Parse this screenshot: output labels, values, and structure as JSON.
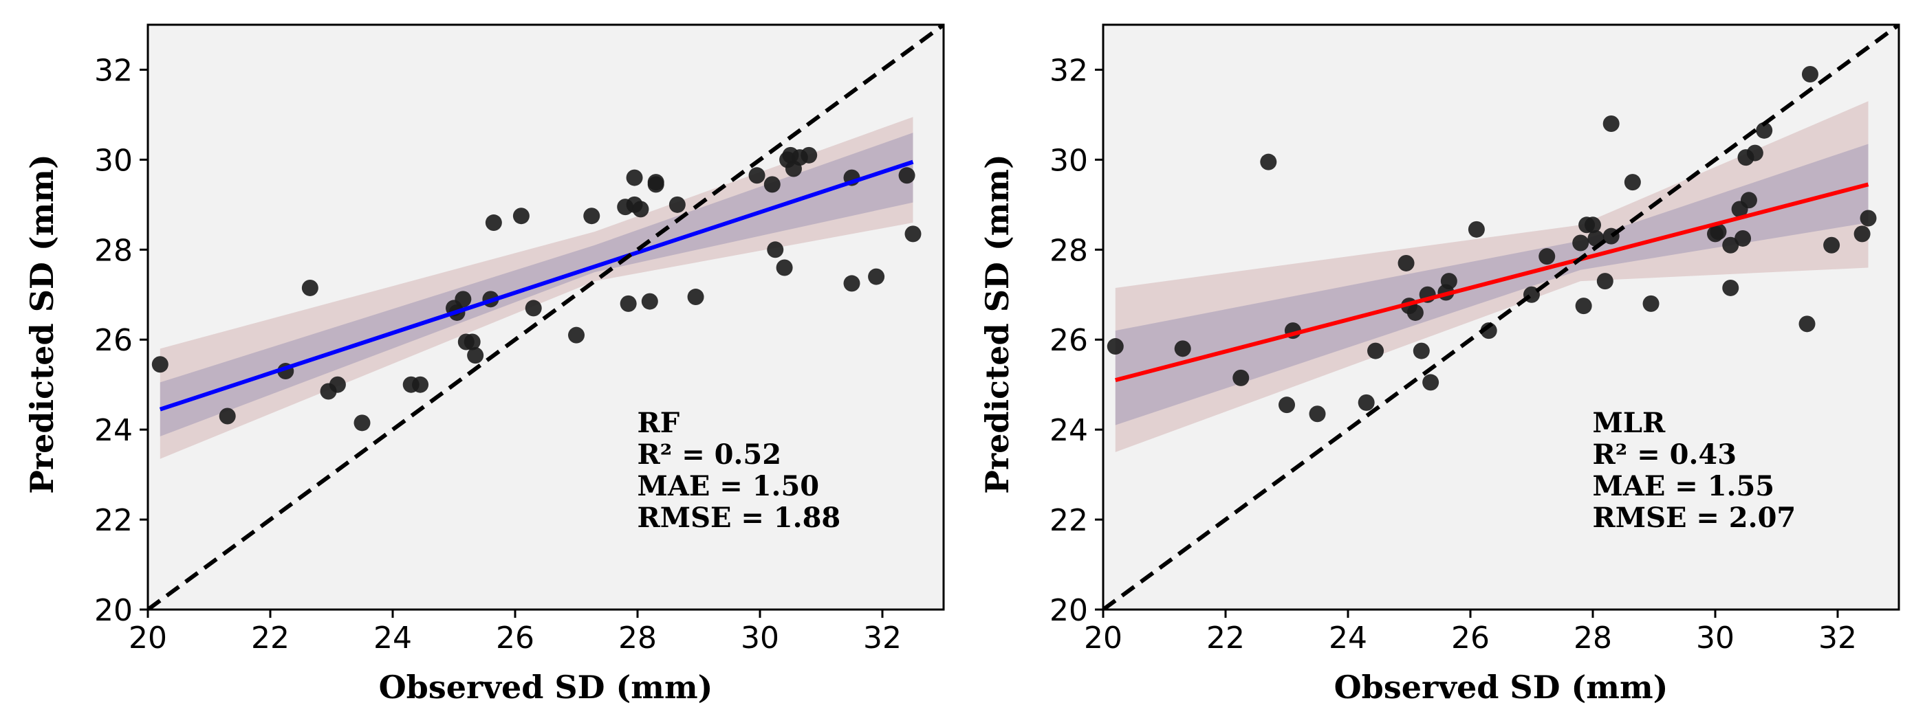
{
  "chart_data": [
    {
      "type": "scatter",
      "xlabel": "Observed SD (mm)",
      "ylabel": "Predicted SD (mm)",
      "xlim": [
        20,
        33
      ],
      "ylim": [
        20,
        33
      ],
      "xticks": [
        20,
        22,
        24,
        26,
        28,
        30,
        32
      ],
      "yticks": [
        20,
        22,
        24,
        26,
        28,
        30,
        32
      ],
      "identity_line": true,
      "fit_color": "#0000ff",
      "fit": [
        [
          20.2,
          24.45
        ],
        [
          32.5,
          29.95
        ]
      ],
      "band_inner": [
        [
          20.2,
          23.85,
          25.05
        ],
        [
          27.3,
          27.5,
          28.1
        ],
        [
          32.5,
          29.05,
          30.6
        ]
      ],
      "band_outer": [
        [
          20.2,
          23.35,
          25.8
        ],
        [
          27.3,
          27.3,
          28.4
        ],
        [
          32.5,
          28.6,
          30.95
        ]
      ],
      "annotation": [
        "RF",
        "R² = 0.52",
        "MAE = 1.50",
        "RMSE = 1.88"
      ],
      "points": [
        [
          20.2,
          25.45
        ],
        [
          21.3,
          24.3
        ],
        [
          22.25,
          25.3
        ],
        [
          22.65,
          27.15
        ],
        [
          22.95,
          24.85
        ],
        [
          23.1,
          25.0
        ],
        [
          23.5,
          24.15
        ],
        [
          24.3,
          25.0
        ],
        [
          24.45,
          25.0
        ],
        [
          25.0,
          26.7
        ],
        [
          25.05,
          26.6
        ],
        [
          25.15,
          26.9
        ],
        [
          25.2,
          25.95
        ],
        [
          25.3,
          25.95
        ],
        [
          25.35,
          25.65
        ],
        [
          25.6,
          26.9
        ],
        [
          25.65,
          28.6
        ],
        [
          26.1,
          28.75
        ],
        [
          26.3,
          26.7
        ],
        [
          27.0,
          26.1
        ],
        [
          27.25,
          28.75
        ],
        [
          27.8,
          28.95
        ],
        [
          27.85,
          26.8
        ],
        [
          27.95,
          29.0
        ],
        [
          27.95,
          29.6
        ],
        [
          28.05,
          28.9
        ],
        [
          28.2,
          26.85
        ],
        [
          28.3,
          29.45
        ],
        [
          28.3,
          29.5
        ],
        [
          28.65,
          29.0
        ],
        [
          28.95,
          26.95
        ],
        [
          29.95,
          29.65
        ],
        [
          30.2,
          29.45
        ],
        [
          30.25,
          28.0
        ],
        [
          30.4,
          27.6
        ],
        [
          30.45,
          30.0
        ],
        [
          30.5,
          30.1
        ],
        [
          30.55,
          29.8
        ],
        [
          30.65,
          30.05
        ],
        [
          30.8,
          30.1
        ],
        [
          31.5,
          27.25
        ],
        [
          31.5,
          29.6
        ],
        [
          31.9,
          27.4
        ],
        [
          32.4,
          29.65
        ],
        [
          32.5,
          28.35
        ]
      ]
    },
    {
      "type": "scatter",
      "xlabel": "Observed SD (mm)",
      "ylabel": "Predicted SD (mm)",
      "xlim": [
        20,
        33
      ],
      "ylim": [
        20,
        33
      ],
      "xticks": [
        20,
        22,
        24,
        26,
        28,
        30,
        32
      ],
      "yticks": [
        20,
        22,
        24,
        26,
        28,
        30,
        32
      ],
      "identity_line": true,
      "fit_color": "#ff0000",
      "fit": [
        [
          20.2,
          25.1
        ],
        [
          32.5,
          29.45
        ]
      ],
      "band_inner": [
        [
          20.2,
          24.1,
          26.2
        ],
        [
          27.8,
          27.55,
          28.2
        ],
        [
          32.5,
          28.6,
          30.35
        ]
      ],
      "band_outer": [
        [
          20.2,
          23.5,
          27.15
        ],
        [
          27.8,
          27.3,
          28.55
        ],
        [
          32.5,
          27.6,
          31.3
        ]
      ],
      "annotation": [
        "MLR",
        "R² = 0.43",
        "MAE = 1.55",
        "RMSE = 2.07"
      ],
      "points": [
        [
          20.2,
          25.85
        ],
        [
          21.3,
          25.8
        ],
        [
          22.25,
          25.15
        ],
        [
          22.7,
          29.95
        ],
        [
          23.0,
          24.55
        ],
        [
          23.1,
          26.2
        ],
        [
          23.5,
          24.35
        ],
        [
          24.3,
          24.6
        ],
        [
          24.45,
          25.75
        ],
        [
          24.95,
          27.7
        ],
        [
          25.0,
          26.75
        ],
        [
          25.1,
          26.6
        ],
        [
          25.2,
          25.75
        ],
        [
          25.3,
          27.0
        ],
        [
          25.35,
          25.05
        ],
        [
          25.6,
          27.05
        ],
        [
          25.65,
          27.3
        ],
        [
          26.1,
          28.45
        ],
        [
          26.3,
          26.2
        ],
        [
          27.0,
          27.0
        ],
        [
          27.25,
          27.85
        ],
        [
          27.8,
          28.15
        ],
        [
          27.85,
          26.75
        ],
        [
          27.9,
          28.55
        ],
        [
          28.0,
          28.55
        ],
        [
          28.05,
          28.25
        ],
        [
          28.2,
          27.3
        ],
        [
          28.3,
          28.3
        ],
        [
          28.3,
          30.8
        ],
        [
          28.65,
          29.5
        ],
        [
          28.95,
          26.8
        ],
        [
          30.0,
          28.35
        ],
        [
          30.05,
          28.4
        ],
        [
          30.25,
          27.15
        ],
        [
          30.25,
          28.1
        ],
        [
          30.4,
          28.9
        ],
        [
          30.45,
          28.25
        ],
        [
          30.5,
          30.05
        ],
        [
          30.55,
          29.1
        ],
        [
          30.65,
          30.15
        ],
        [
          30.8,
          30.65
        ],
        [
          31.5,
          26.35
        ],
        [
          31.55,
          31.9
        ],
        [
          31.9,
          28.1
        ],
        [
          32.4,
          28.35
        ],
        [
          32.5,
          28.7
        ]
      ]
    }
  ]
}
